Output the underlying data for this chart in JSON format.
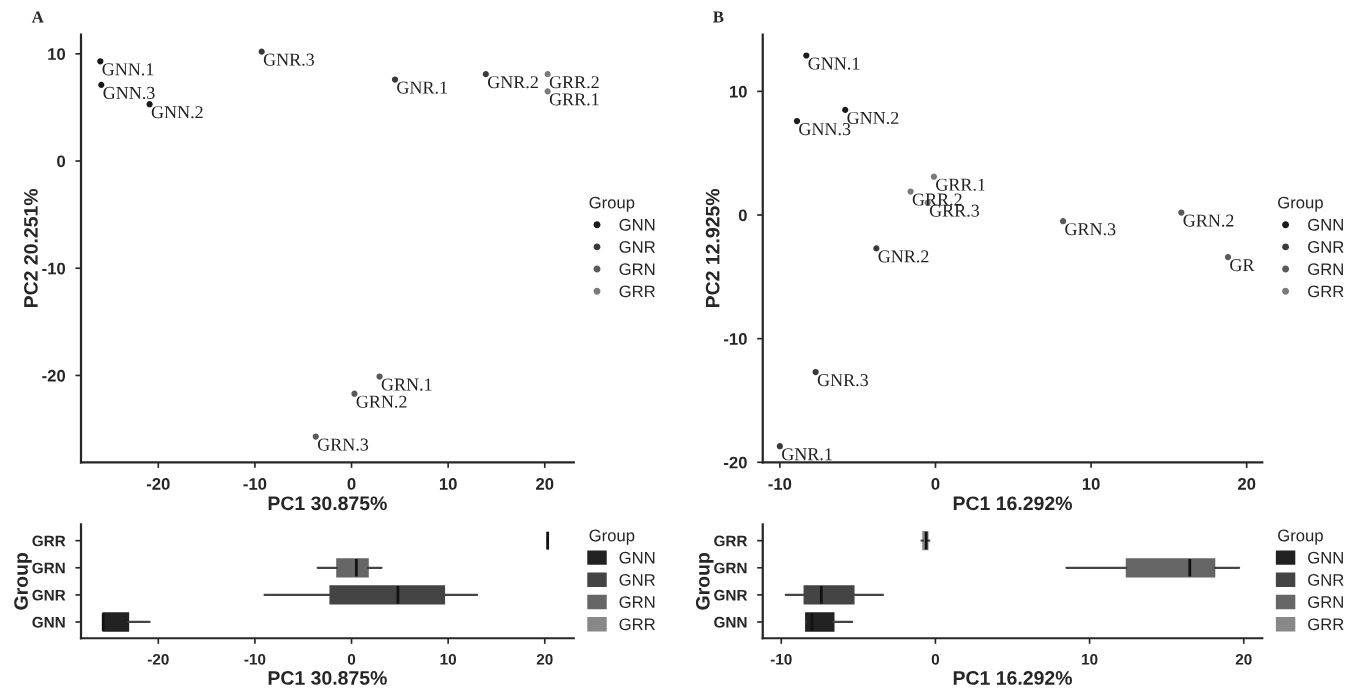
{
  "chart_data": [
    {
      "type": "scatter",
      "title": "A",
      "xlabel": "PC1 30.875%",
      "ylabel": "PC2 20.251%",
      "legend_title": "Group",
      "legend": "right",
      "marker": "circle",
      "grid": false,
      "xlim": [
        -28,
        23
      ],
      "xticks": [
        -20,
        -10,
        0,
        10,
        20
      ],
      "ylim": [
        -28.1,
        11.8
      ],
      "yticks": [
        -20,
        -10,
        0,
        10
      ],
      "series": [
        {
          "name": "GNN",
          "color": "#1a1a1a",
          "x": [
            -26,
            -25.9,
            -20.9
          ],
          "values": [
            9.3,
            7.1,
            5.3
          ]
        },
        {
          "name": "GNR",
          "color": "#3a3a3a",
          "x": [
            -9.3,
            4.5,
            13.9
          ],
          "values": [
            10.2,
            7.6,
            8.1
          ]
        },
        {
          "name": "GRN",
          "color": "#5a5a5a",
          "x": [
            2.9,
            0.3,
            -3.7
          ],
          "values": [
            -20.1,
            -21.7,
            -25.7
          ]
        },
        {
          "name": "GRR",
          "color": "#7a7a7a",
          "x": [
            20.3,
            20.3
          ],
          "values": [
            8.1,
            6.5
          ]
        }
      ],
      "annotations": [
        {
          "text": "GNN.1",
          "x": -26,
          "y": 9.3
        },
        {
          "text": "GNN.3",
          "x": -25.9,
          "y": 7.1
        },
        {
          "text": "GNN.2",
          "x": -20.9,
          "y": 5.3
        },
        {
          "text": "GNR.3",
          "x": -9.3,
          "y": 10.2
        },
        {
          "text": "GNR.1",
          "x": 4.5,
          "y": 7.6
        },
        {
          "text": "GNR.2",
          "x": 13.9,
          "y": 8.1
        },
        {
          "text": "GRN.1",
          "x": 2.9,
          "y": -20.1
        },
        {
          "text": "GRN.2",
          "x": 0.3,
          "y": -21.7
        },
        {
          "text": "GRN.3",
          "x": -3.7,
          "y": -25.7
        },
        {
          "text": "GRR.2",
          "x": 20.3,
          "y": 8.1
        },
        {
          "text": "GRR.1",
          "x": 20.3,
          "y": 6.5
        }
      ]
    },
    {
      "type": "scatter",
      "title": "B",
      "xlabel": "PC1 16.292%",
      "ylabel": "PC2 12.925%",
      "legend_title": "Group",
      "legend": "right",
      "marker": "circle",
      "grid": false,
      "xlim": [
        -11.1,
        21
      ],
      "xticks": [
        -10,
        0,
        10,
        20
      ],
      "ylim": [
        -20,
        14.6
      ],
      "yticks": [
        -20,
        -10,
        0,
        10
      ],
      "series": [
        {
          "name": "GNN",
          "color": "#1a1a1a",
          "x": [
            -8.3,
            -8.9,
            -5.8
          ],
          "values": [
            12.9,
            7.6,
            8.5
          ]
        },
        {
          "name": "GNR",
          "color": "#3a3a3a",
          "x": [
            -10.0,
            -3.8,
            -7.7
          ],
          "values": [
            -18.7,
            -2.7,
            -12.7
          ]
        },
        {
          "name": "GRN",
          "color": "#5a5a5a",
          "x": [
            18.8,
            15.8,
            8.2
          ],
          "values": [
            -3.4,
            0.2,
            -0.5
          ]
        },
        {
          "name": "GRR",
          "color": "#7a7a7a",
          "x": [
            -0.1,
            -1.6,
            -0.5
          ],
          "values": [
            3.1,
            1.9,
            1.0
          ]
        }
      ],
      "annotations": [
        {
          "text": "GNN.1",
          "x": -8.3,
          "y": 12.9
        },
        {
          "text": "GNN.3",
          "x": -8.9,
          "y": 7.6
        },
        {
          "text": "GNN.2",
          "x": -5.8,
          "y": 8.5
        },
        {
          "text": "GNR.1",
          "x": -10.0,
          "y": -18.7
        },
        {
          "text": "GNR.2",
          "x": -3.8,
          "y": -2.7
        },
        {
          "text": "GNR.3",
          "x": -7.7,
          "y": -12.7
        },
        {
          "text": "GR",
          "x": 18.8,
          "y": -3.4
        },
        {
          "text": "GRN.2",
          "x": 15.8,
          "y": 0.2
        },
        {
          "text": "GRN.3",
          "x": 8.2,
          "y": -0.5
        },
        {
          "text": "GRR.1",
          "x": -0.1,
          "y": 3.1
        },
        {
          "text": "GRR.2",
          "x": -1.6,
          "y": 1.9
        },
        {
          "text": "GRR.3",
          "x": -0.5,
          "y": 1.0
        }
      ]
    },
    {
      "type": "box",
      "orientation": "horizontal",
      "xlabel": "PC1 30.875%",
      "ylabel": "Group",
      "legend_title": "Group",
      "legend": "right",
      "grid": false,
      "xlim": [
        -28,
        23
      ],
      "xticks": [
        -20,
        -10,
        0,
        10,
        20
      ],
      "categories": [
        "GRR",
        "GRN",
        "GNR",
        "GNN"
      ],
      "series": [
        {
          "name": "GNN",
          "color": "#222222",
          "boxes": [
            null,
            null,
            null,
            {
              "low": -25.7,
              "q1": -25.7,
              "median": -25.7,
              "q3": -23.1,
              "high": -20.9
            }
          ]
        },
        {
          "name": "GNR",
          "color": "#444444",
          "boxes": [
            null,
            null,
            {
              "low": -9.0,
              "q1": -2.2,
              "median": 4.8,
              "q3": 9.6,
              "high": 13.0
            },
            null
          ]
        },
        {
          "name": "GRN",
          "color": "#666666",
          "boxes": [
            null,
            {
              "low": -3.5,
              "q1": -1.5,
              "median": 0.5,
              "q3": 1.7,
              "high": 3.1
            },
            null,
            null
          ]
        },
        {
          "name": "GRR",
          "color": "#888888",
          "boxes": [
            {
              "low": 20.3,
              "q1": 20.3,
              "median": 20.3,
              "q3": 20.3,
              "high": 20.3
            },
            null,
            null,
            null
          ]
        }
      ]
    },
    {
      "type": "box",
      "orientation": "horizontal",
      "xlabel": "PC1 16.292%",
      "ylabel": "Group",
      "legend_title": "Group",
      "legend": "right",
      "grid": false,
      "xlim": [
        -11.2,
        21.2
      ],
      "xticks": [
        -10,
        0,
        10,
        20
      ],
      "categories": [
        "GRR",
        "GRN",
        "GNR",
        "GNN"
      ],
      "series": [
        {
          "name": "GNN",
          "color": "#222222",
          "boxes": [
            null,
            null,
            null,
            {
              "low": -8.4,
              "q1": -8.4,
              "median": -8.0,
              "q3": -6.6,
              "high": -5.4
            }
          ]
        },
        {
          "name": "GNR",
          "color": "#444444",
          "boxes": [
            null,
            null,
            {
              "low": -9.7,
              "q1": -8.5,
              "median": -7.4,
              "q3": -5.3,
              "high": -3.4
            },
            null
          ]
        },
        {
          "name": "GRN",
          "color": "#666666",
          "boxes": [
            null,
            {
              "low": 8.5,
              "q1": 12.4,
              "median": 16.5,
              "q3": 18.1,
              "high": 19.7
            },
            null,
            null
          ]
        },
        {
          "name": "GRR",
          "color": "#888888",
          "boxes": [
            {
              "low": -0.9,
              "q1": -0.8,
              "median": -0.6,
              "q3": -0.5,
              "high": -0.4
            },
            null,
            null,
            null
          ]
        }
      ]
    }
  ]
}
